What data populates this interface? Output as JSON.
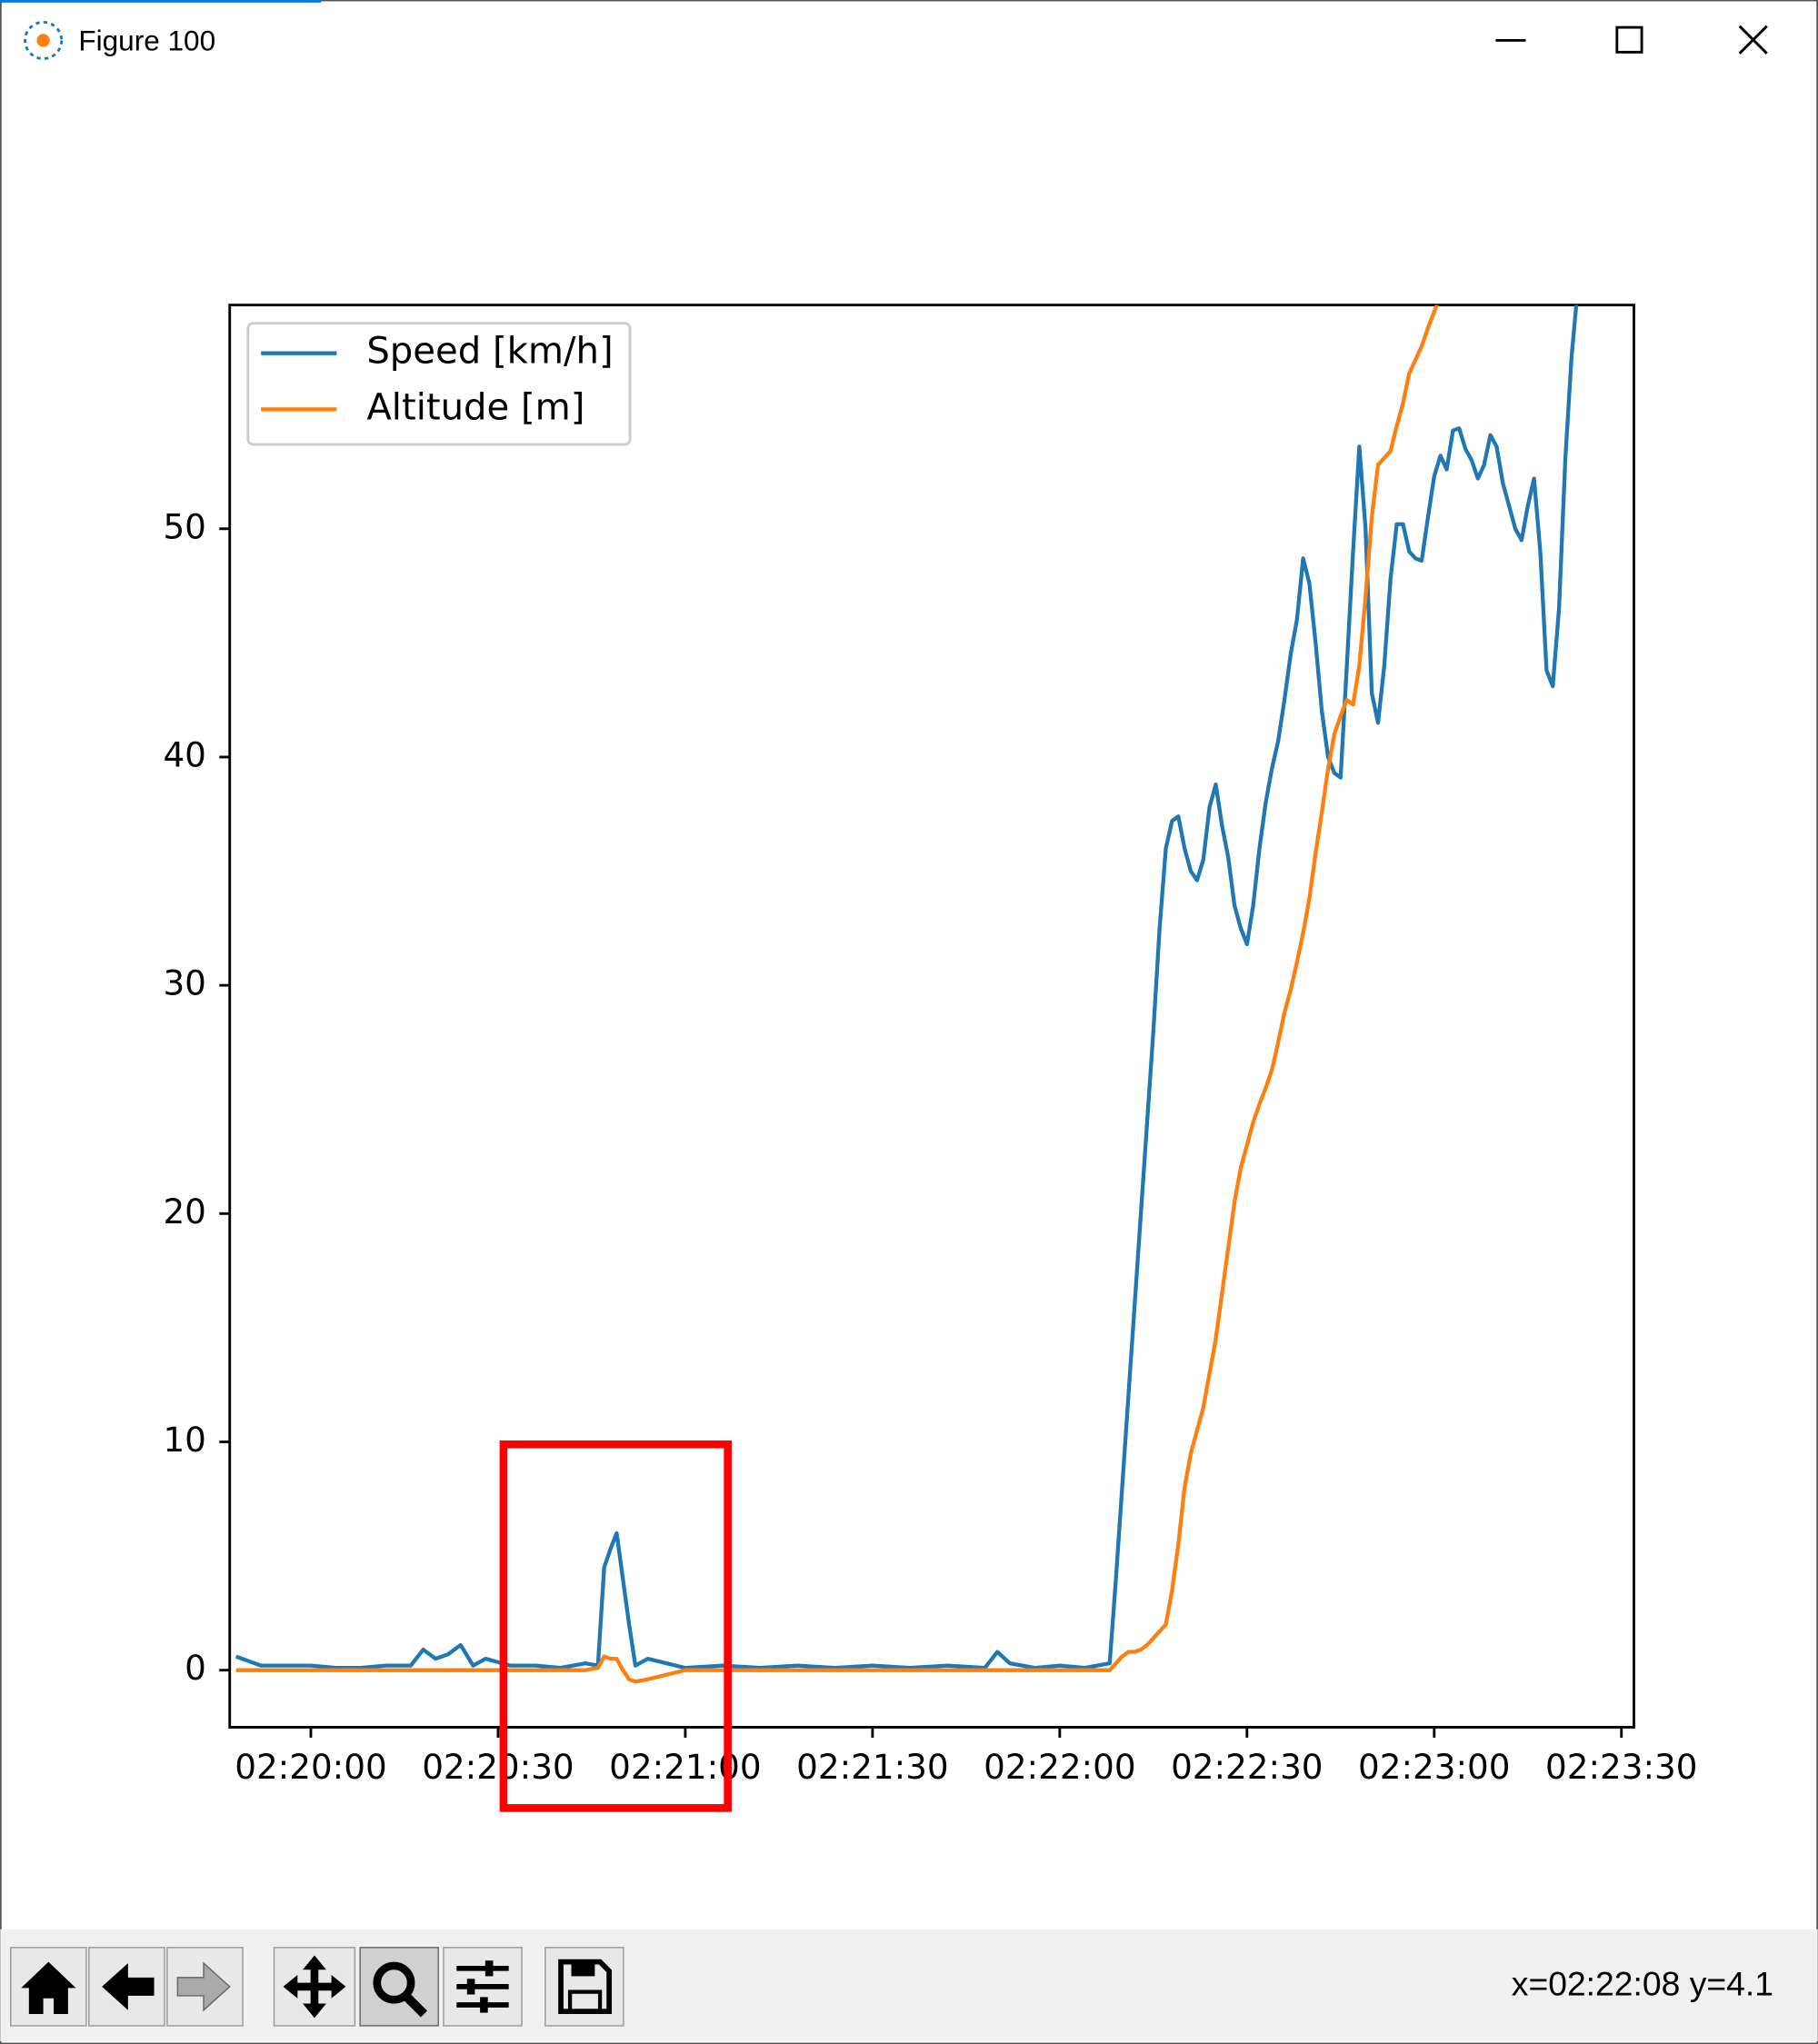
{
  "window": {
    "title": "Figure 100"
  },
  "chart_data": {
    "type": "line",
    "x": [
      "02:19:48",
      "02:19:52",
      "02:19:56",
      "02:20:00",
      "02:20:04",
      "02:20:08",
      "02:20:12",
      "02:20:16",
      "02:20:18",
      "02:20:20",
      "02:20:22",
      "02:20:24",
      "02:20:26",
      "02:20:28",
      "02:20:32",
      "02:20:36",
      "02:20:40",
      "02:20:44",
      "02:20:46",
      "02:20:47",
      "02:20:48",
      "02:20:49",
      "02:20:50",
      "02:20:51",
      "02:20:52",
      "02:20:54",
      "02:21:00",
      "02:21:06",
      "02:21:12",
      "02:21:18",
      "02:21:24",
      "02:21:30",
      "02:21:36",
      "02:21:42",
      "02:21:48",
      "02:21:50",
      "02:21:52",
      "02:21:56",
      "02:22:00",
      "02:22:04",
      "02:22:08",
      "02:22:09",
      "02:22:10",
      "02:22:11",
      "02:22:12",
      "02:22:13",
      "02:22:14",
      "02:22:15",
      "02:22:16",
      "02:22:17",
      "02:22:18",
      "02:22:19",
      "02:22:20",
      "02:22:21",
      "02:22:22",
      "02:22:23",
      "02:22:24",
      "02:22:25",
      "02:22:26",
      "02:22:27",
      "02:22:28",
      "02:22:29",
      "02:22:30",
      "02:22:31",
      "02:22:32",
      "02:22:33",
      "02:22:34",
      "02:22:35",
      "02:22:36",
      "02:22:37",
      "02:22:38",
      "02:22:39",
      "02:22:40",
      "02:22:41",
      "02:22:42",
      "02:22:43",
      "02:22:44",
      "02:22:45",
      "02:22:46",
      "02:22:47",
      "02:22:48",
      "02:22:49",
      "02:22:50",
      "02:22:51",
      "02:22:52",
      "02:22:53",
      "02:22:54",
      "02:22:55",
      "02:22:56",
      "02:22:57",
      "02:22:58",
      "02:22:59",
      "02:23:00",
      "02:23:01",
      "02:23:02",
      "02:23:03",
      "02:23:04",
      "02:23:05",
      "02:23:06",
      "02:23:07",
      "02:23:08",
      "02:23:09",
      "02:23:10",
      "02:23:11",
      "02:23:12",
      "02:23:13",
      "02:23:14",
      "02:23:15",
      "02:23:16",
      "02:23:17",
      "02:23:18",
      "02:23:19",
      "02:23:20",
      "02:23:21",
      "02:23:22",
      "02:23:23"
    ],
    "series": [
      {
        "name": "Speed [km/h]",
        "color": "#1f77b4",
        "values": [
          0.6,
          0.2,
          0.2,
          0.2,
          0.1,
          0.1,
          0.2,
          0.2,
          0.9,
          0.5,
          0.7,
          1.1,
          0.2,
          0.5,
          0.2,
          0.2,
          0.1,
          0.3,
          0.2,
          4.5,
          5.3,
          6.0,
          4.0,
          2.0,
          0.2,
          0.5,
          0.1,
          0.2,
          0.1,
          0.2,
          0.1,
          0.2,
          0.1,
          0.2,
          0.1,
          0.8,
          0.3,
          0.1,
          0.2,
          0.1,
          0.3,
          4,
          8,
          12,
          16,
          20,
          24,
          28,
          32.5,
          36,
          37.2,
          37.4,
          36,
          35,
          34.6,
          35.5,
          37.8,
          38.8,
          37,
          35.6,
          33.5,
          32.5,
          31.8,
          33.5,
          36,
          38,
          39.5,
          40.7,
          42.5,
          44.5,
          46,
          48.7,
          47.6,
          45,
          42,
          40,
          39.3,
          39.1,
          44,
          49,
          53.6,
          50,
          42.8,
          41.5,
          44,
          47.8,
          50.2,
          50.2,
          49,
          48.7,
          48.6,
          50.5,
          52.3,
          53.2,
          52.6,
          54.3,
          54.4,
          53.5,
          53,
          52.2,
          52.8,
          54.1,
          53.6,
          52,
          51,
          50,
          49.5,
          51,
          52.2,
          49,
          43.8,
          43.1,
          46.5,
          53,
          57.5,
          60.5
        ]
      },
      {
        "name": "Altitude [m]",
        "color": "#ff7f0e",
        "values": [
          0,
          0,
          0,
          0,
          0,
          0,
          0,
          0,
          0,
          0,
          0,
          0,
          0,
          0,
          0,
          0,
          0,
          0,
          0.1,
          0.6,
          0.5,
          0.5,
          0,
          -0.4,
          -0.5,
          -0.4,
          0,
          0,
          0,
          0,
          0,
          0,
          0,
          0,
          0,
          0,
          0,
          0,
          0,
          0,
          0,
          0.3,
          0.6,
          0.8,
          0.8,
          0.9,
          1.1,
          1.4,
          1.7,
          2.0,
          3.5,
          5.5,
          8,
          9.5,
          10.5,
          11.5,
          13,
          14.5,
          16.5,
          18.5,
          20.5,
          22,
          23,
          24,
          24.8,
          25.5,
          26.3,
          27.5,
          28.8,
          29.8,
          31,
          32.3,
          33.8,
          35.8,
          37.6,
          39.5,
          41,
          41.8,
          42.5,
          42.3,
          44,
          47,
          50.5,
          52.8,
          53.1,
          53.4,
          54.5,
          55.5,
          56.8,
          57.4,
          58,
          58.8,
          59.5,
          60.2,
          null,
          null,
          null,
          null,
          null,
          null,
          null,
          null,
          null,
          null,
          null,
          null,
          null,
          null,
          null,
          null,
          null,
          null,
          null,
          null,
          null,
          null
        ]
      }
    ],
    "xlim": [
      "02:19:47",
      "02:23:32"
    ],
    "xticks": [
      "02:20:00",
      "02:20:30",
      "02:21:00",
      "02:21:30",
      "02:22:00",
      "02:22:30",
      "02:23:00",
      "02:23:30"
    ],
    "ylim": [
      -2.5,
      59.8
    ],
    "yticks": [
      0,
      10,
      20,
      30,
      40,
      50
    ],
    "grid": false,
    "legend": "upper left"
  },
  "status": "x=02:22:08 y=4.1"
}
